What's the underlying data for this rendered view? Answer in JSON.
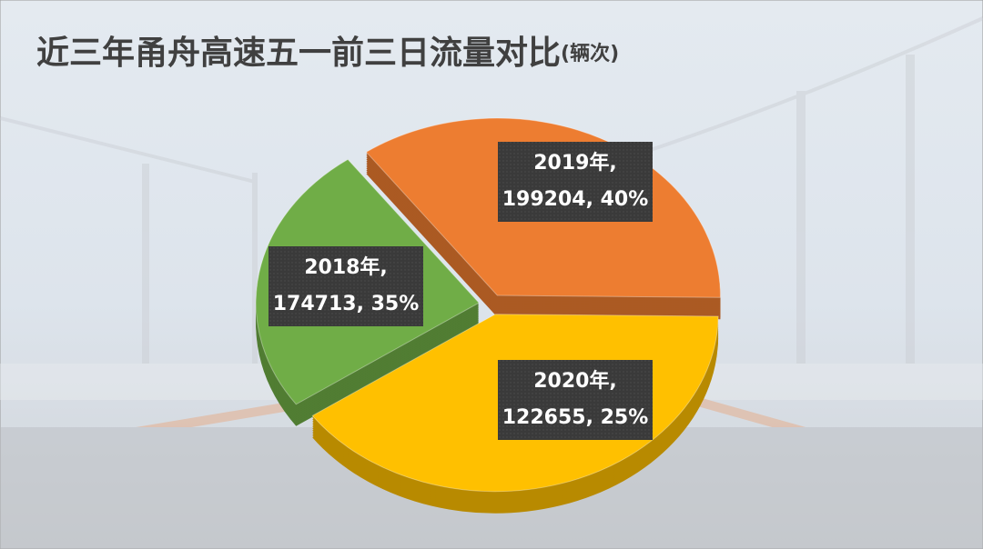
{
  "chart_data": {
    "type": "pie",
    "title": "近三年甬舟高速五一前三日流量对比",
    "unit": "(辆次)",
    "categories": [
      "2018年",
      "2019年",
      "2020年"
    ],
    "values": [
      174713,
      199204,
      122655
    ],
    "value_labels": [
      [
        "2018年,",
        "174713, 35%"
      ],
      [
        "2019年,",
        "199204, 40%"
      ],
      [
        "2020年,",
        "122655, 25%"
      ]
    ],
    "colors": [
      "#ed7d31",
      "#ffc000",
      "#70ad47"
    ]
  }
}
